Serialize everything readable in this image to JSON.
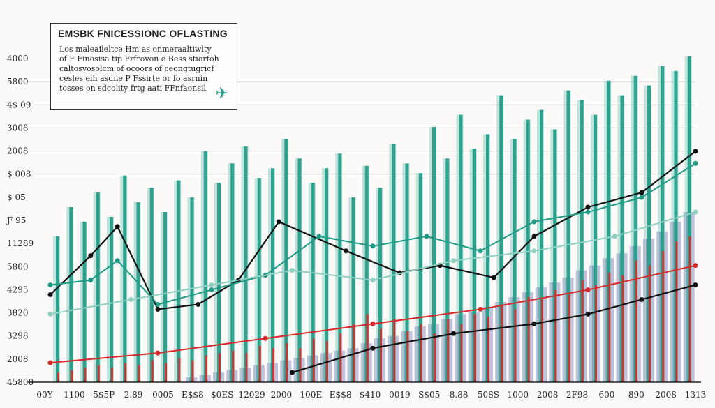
{
  "chart_data": {
    "type": "bar",
    "title": "EMSBK FNICESSIONC OFLASTING",
    "subtitle_lines": [
      "Los maleaileltce  Hm as onmeraaltiwlty",
      "of F Finosisa tip Frfrovon e Bess stiortoh",
      "caltosvosolcm of ocoors of ceongtugricf",
      "cesles eih asdne P Fssirte or fo asrnin",
      "tosses on sdcolity frtg aati FFnfaonsil"
    ],
    "y_tick_labels": [
      "4000",
      "5800",
      "4$ 09",
      "3008",
      "2008",
      "$ 008",
      "$ 05",
      "Ƒ 95",
      "11289",
      "5800",
      "4295",
      "3820",
      "3298",
      "2008",
      "45800"
    ],
    "x_tick_labels": [
      "00Y",
      "1100",
      "5$5P",
      "2.89",
      "0005",
      "E$$8",
      "$0ES",
      "12029",
      "2000",
      "100E",
      "E$$8",
      "$410",
      "0019",
      "S$05",
      "8.88",
      "508S",
      "1000",
      "2008",
      "2F98",
      "600",
      "890",
      "2008",
      "1313"
    ],
    "colors": {
      "teal": "#1f9a86",
      "teal_light": "#8fd0c3",
      "red": "#d62a2a",
      "purple": "#5a5a9a",
      "purple_light": "#b9b8d8",
      "black": "#111111"
    },
    "series": [
      {
        "color_key": "teal",
        "values": [
          60,
          72,
          66,
          78,
          68,
          85,
          74,
          80,
          70,
          83,
          76,
          95,
          82,
          90,
          97,
          84,
          88,
          100,
          92,
          82,
          88,
          94,
          76,
          89,
          80,
          98,
          90,
          86,
          105,
          92,
          110,
          96,
          102,
          118,
          100,
          108,
          112,
          104,
          120,
          116,
          110,
          124,
          118,
          126,
          122,
          130,
          128,
          134
        ]
      },
      {
        "color_key": "red",
        "values": [
          4,
          5,
          6,
          7,
          6,
          8,
          7,
          9,
          8,
          10,
          9,
          11,
          12,
          13,
          12,
          15,
          14,
          16,
          14,
          18,
          17,
          20,
          24,
          28,
          22,
          26,
          21,
          24,
          20,
          26,
          24,
          28,
          27,
          32,
          30,
          35,
          34,
          38,
          36,
          42,
          40,
          45,
          44,
          50,
          48,
          54,
          58,
          60
        ]
      },
      {
        "color_key": "purple",
        "values": [
          0,
          0,
          0,
          0,
          0,
          0,
          0,
          0,
          0,
          0,
          2,
          3,
          4,
          5,
          6,
          7,
          8,
          9,
          10,
          11,
          12,
          13,
          14,
          16,
          18,
          19,
          21,
          23,
          24,
          26,
          28,
          29,
          31,
          33,
          35,
          37,
          39,
          41,
          43,
          46,
          48,
          51,
          53,
          56,
          59,
          62,
          66,
          70
        ]
      }
    ],
    "lines": [
      {
        "color_key": "black",
        "points": [
          [
            0,
            36
          ],
          [
            3,
            52
          ],
          [
            5,
            64
          ],
          [
            8,
            30
          ],
          [
            11,
            32
          ],
          [
            14,
            42
          ],
          [
            17,
            66
          ],
          [
            22,
            54
          ],
          [
            26,
            45
          ],
          [
            29,
            48
          ],
          [
            33,
            43
          ],
          [
            36,
            60
          ],
          [
            40,
            72
          ],
          [
            44,
            78
          ],
          [
            48,
            95
          ]
        ]
      },
      {
        "color_key": "teal",
        "points": [
          [
            0,
            40
          ],
          [
            3,
            42
          ],
          [
            5,
            50
          ],
          [
            8,
            32
          ],
          [
            12,
            38
          ],
          [
            16,
            44
          ],
          [
            20,
            60
          ],
          [
            24,
            56
          ],
          [
            28,
            60
          ],
          [
            32,
            54
          ],
          [
            36,
            66
          ],
          [
            40,
            70
          ],
          [
            44,
            76
          ],
          [
            48,
            90
          ]
        ]
      },
      {
        "color_key": "teal_light",
        "points": [
          [
            0,
            28
          ],
          [
            6,
            34
          ],
          [
            12,
            40
          ],
          [
            18,
            46
          ],
          [
            24,
            42
          ],
          [
            30,
            50
          ],
          [
            36,
            54
          ],
          [
            42,
            60
          ],
          [
            48,
            70
          ]
        ]
      },
      {
        "color_key": "red",
        "points": [
          [
            0,
            8
          ],
          [
            8,
            12
          ],
          [
            16,
            18
          ],
          [
            24,
            24
          ],
          [
            32,
            30
          ],
          [
            40,
            38
          ],
          [
            48,
            48
          ]
        ]
      },
      {
        "color_key": "black",
        "points": [
          [
            18,
            4
          ],
          [
            24,
            14
          ],
          [
            30,
            20
          ],
          [
            36,
            24
          ],
          [
            40,
            28
          ],
          [
            44,
            34
          ],
          [
            48,
            40
          ]
        ]
      }
    ]
  }
}
